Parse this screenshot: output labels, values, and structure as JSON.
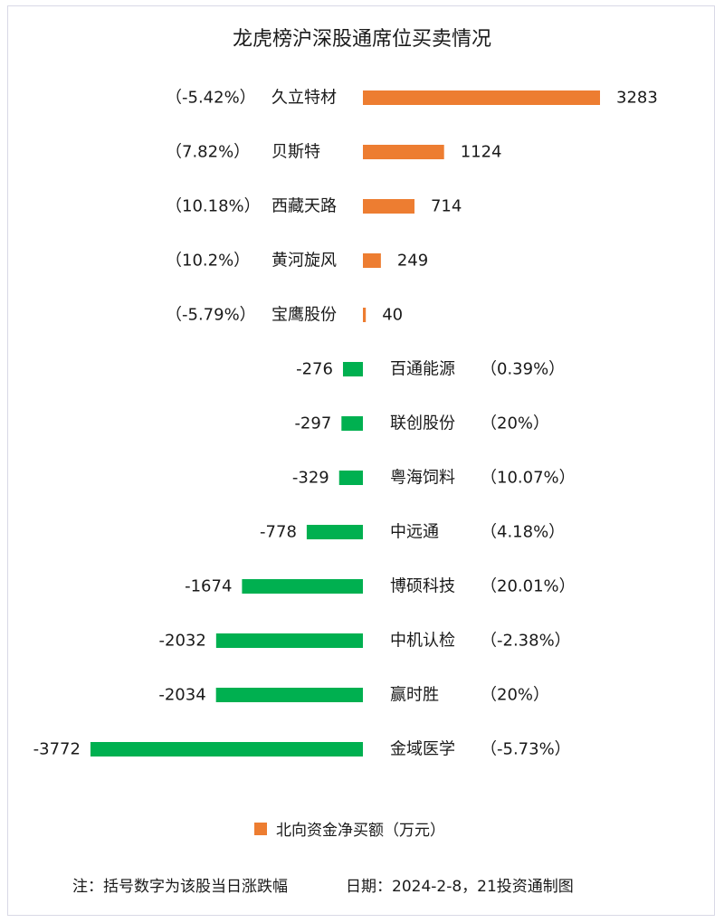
{
  "chart_data": {
    "type": "bar",
    "title": "龙虎榜沪深股通席位买卖情况",
    "legend": {
      "label": "北向资金净买额（万元）",
      "color": "#ED7D31",
      "placement": "bottom-center"
    },
    "colors": {
      "positive": "#ED7D31",
      "negative": "#00B050"
    },
    "rows": [
      {
        "name": "久立特材",
        "value": 3283,
        "value_label": "3283",
        "change": "（-5.42%）"
      },
      {
        "name": "贝斯特",
        "value": 1124,
        "value_label": "1124",
        "change": "（7.82%）"
      },
      {
        "name": "西藏天路",
        "value": 714,
        "value_label": "714",
        "change": "（10.18%）"
      },
      {
        "name": "黄河旋风",
        "value": 249,
        "value_label": "249",
        "change": "（10.2%）"
      },
      {
        "name": "宝鹰股份",
        "value": 40,
        "value_label": "40",
        "change": "（-5.79%）"
      },
      {
        "name": "百通能源",
        "value": -276,
        "value_label": "-276",
        "change": "（0.39%）"
      },
      {
        "name": "联创股份",
        "value": -297,
        "value_label": "-297",
        "change": "（20%）"
      },
      {
        "name": "粤海饲料",
        "value": -329,
        "value_label": "-329",
        "change": "（10.07%）"
      },
      {
        "name": "中远通",
        "value": -778,
        "value_label": "-778",
        "change": "（4.18%）"
      },
      {
        "name": "博硕科技",
        "value": -1674,
        "value_label": "-1674",
        "change": "（20.01%）"
      },
      {
        "name": "中机认检",
        "value": -2032,
        "value_label": "-2032",
        "change": "（-2.38%）"
      },
      {
        "name": "赢时胜",
        "value": -2034,
        "value_label": "-2034",
        "change": "（20%）"
      },
      {
        "name": "金域医学",
        "value": -3772,
        "value_label": "-3772",
        "change": "（-5.73%）"
      }
    ],
    "grid": false
  },
  "footer": {
    "note": "注：括号数字为该股当日涨跌幅",
    "date_source": "日期：2024-2-8，21投资通制图"
  }
}
